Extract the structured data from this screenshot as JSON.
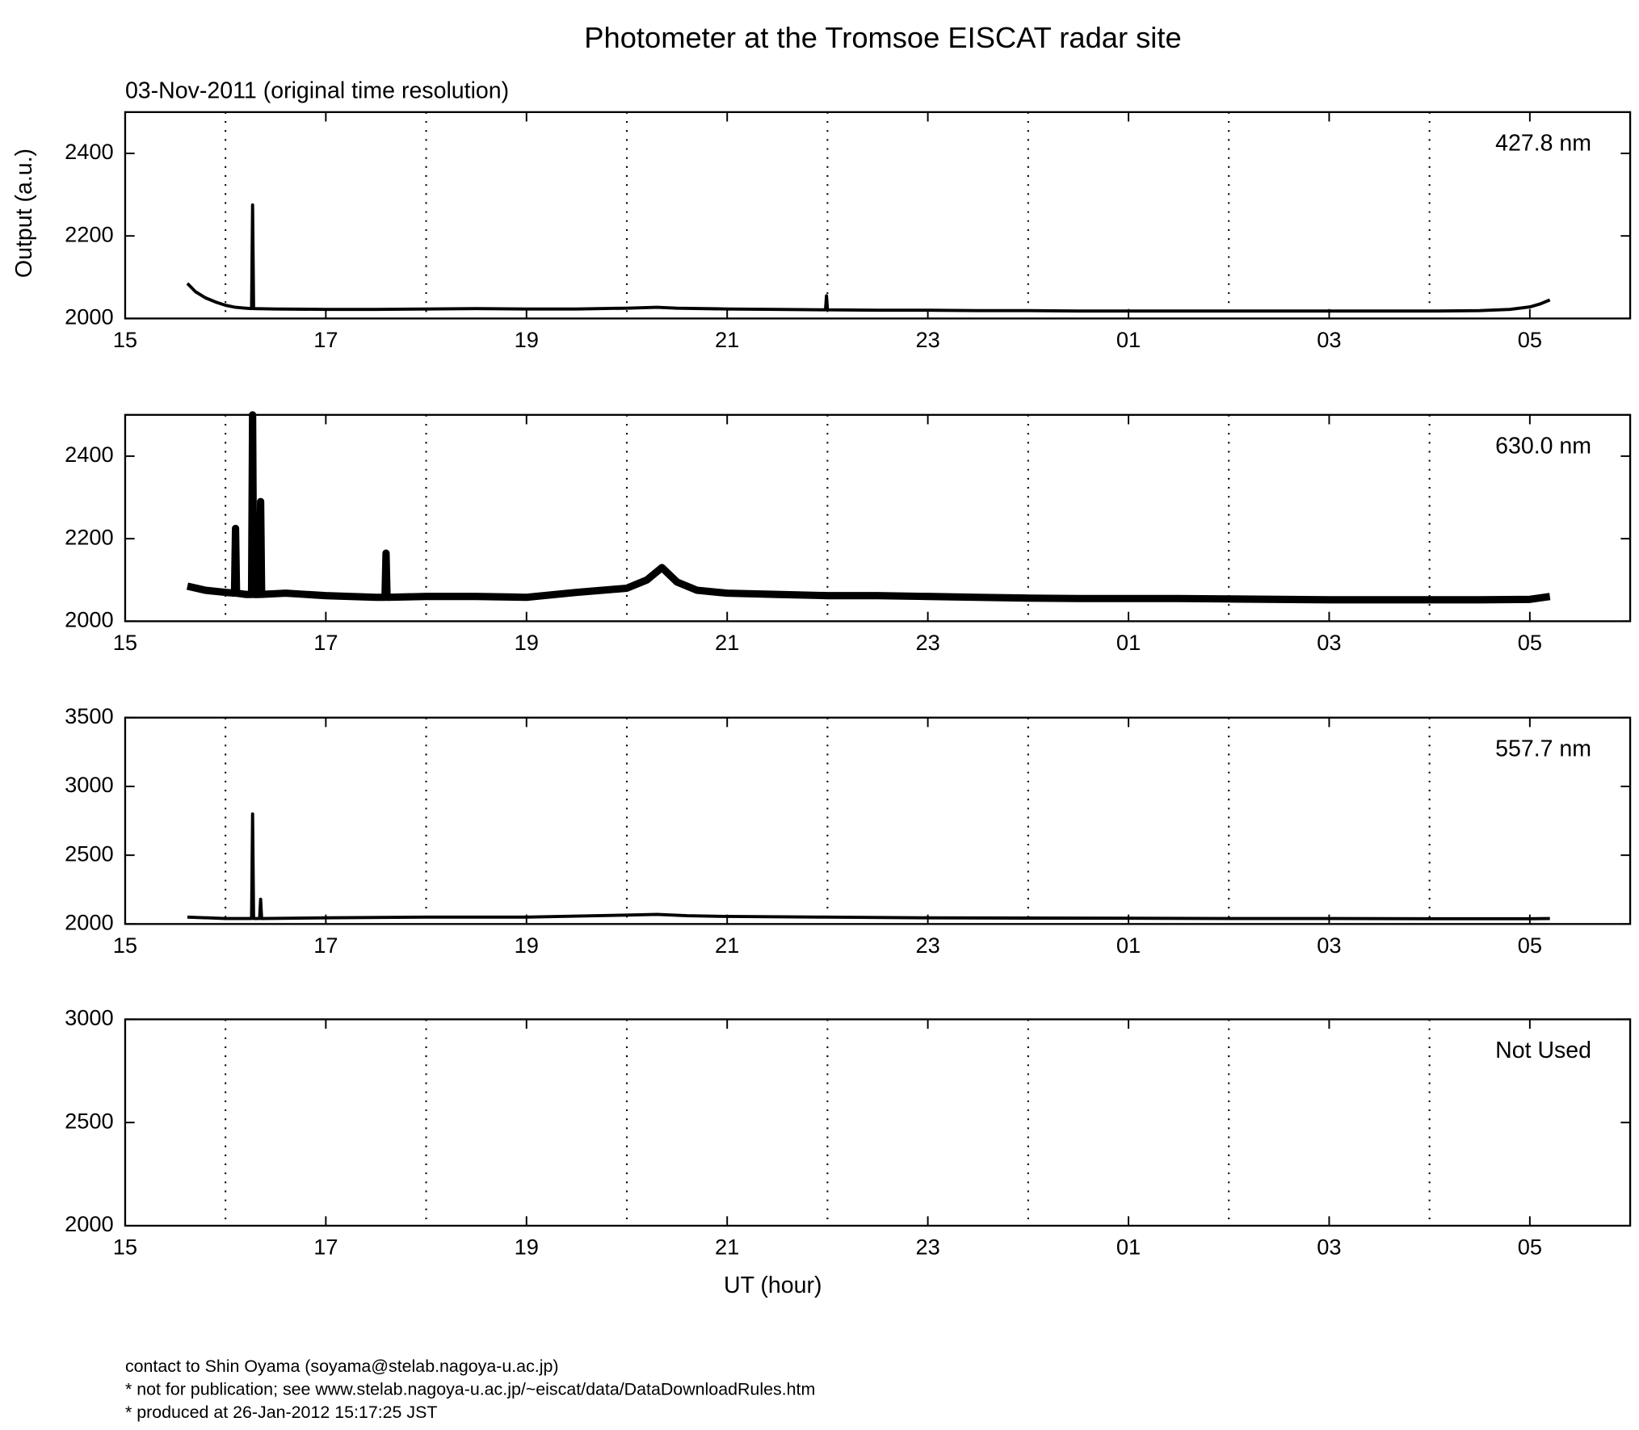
{
  "title": "Photometer at the Tromsoe EISCAT radar site",
  "footer": [
    "contact to Shin Oyama (soyama@stelab.nagoya-u.ac.jp)",
    "* not for publication; see www.stelab.nagoya-u.ac.jp/~eiscat/data/DataDownloadRules.htm",
    "* produced at 26-Jan-2012 15:17:25 JST"
  ],
  "chart_data": [
    {
      "type": "line",
      "subtitle": "03-Nov-2011 (original time resolution)",
      "ylabel": "Output (a.u.)",
      "annotation": "427.8 nm",
      "color": "#000000",
      "x": [
        15.62,
        15.7,
        15.8,
        15.9,
        16.0,
        16.1,
        16.2,
        16.26,
        16.27,
        16.28,
        16.5,
        17,
        17.5,
        18,
        18.5,
        19,
        19.5,
        20,
        20.3,
        20.5,
        21,
        21.5,
        21.98,
        21.99,
        22.0,
        22.5,
        23,
        23.5,
        24,
        24.5,
        25,
        25.5,
        26,
        26.5,
        27,
        27.5,
        28,
        28.5,
        28.8,
        29.0,
        29.1,
        29.2
      ],
      "values": [
        2085,
        2065,
        2050,
        2040,
        2032,
        2027,
        2025,
        2024,
        2275,
        2024,
        2023,
        2022,
        2022,
        2023,
        2024,
        2023,
        2023,
        2025,
        2027,
        2025,
        2023,
        2022,
        2021,
        2055,
        2021,
        2020,
        2020,
        2019,
        2019,
        2018,
        2018,
        2018,
        2018,
        2018,
        2018,
        2018,
        2018,
        2019,
        2022,
        2028,
        2035,
        2045
      ],
      "xlim": [
        15,
        30
      ],
      "xticks": [
        15,
        17,
        19,
        21,
        23,
        {
          "value": 25,
          "label": "01"
        },
        {
          "value": 27,
          "label": "03"
        },
        {
          "value": 29,
          "label": "05"
        }
      ],
      "xgrid": [
        16,
        18,
        20,
        22,
        24,
        26,
        28
      ],
      "ylim": [
        2000,
        2500
      ],
      "yticks": [
        2000,
        2200,
        2400
      ]
    },
    {
      "type": "line",
      "annotation": "630.0 nm",
      "color": "#000000",
      "x": [
        15.62,
        15.8,
        16.0,
        16.09,
        16.1,
        16.11,
        16.2,
        16.26,
        16.27,
        16.28,
        16.34,
        16.35,
        16.36,
        16.6,
        17,
        17.5,
        17.59,
        17.6,
        17.61,
        18,
        18.5,
        19,
        19.5,
        20,
        20.2,
        20.35,
        20.5,
        20.7,
        21,
        21.5,
        22,
        22.5,
        23,
        23.5,
        24,
        24.5,
        25,
        25.5,
        26,
        26.5,
        27,
        27.5,
        28,
        28.5,
        29,
        29.2
      ],
      "values": [
        2085,
        2075,
        2070,
        2068,
        2225,
        2068,
        2065,
        2065,
        2500,
        2065,
        2065,
        2290,
        2065,
        2068,
        2062,
        2058,
        2058,
        2165,
        2058,
        2060,
        2060,
        2058,
        2070,
        2080,
        2100,
        2130,
        2095,
        2075,
        2068,
        2065,
        2062,
        2062,
        2060,
        2058,
        2056,
        2055,
        2055,
        2055,
        2054,
        2053,
        2052,
        2052,
        2052,
        2052,
        2053,
        2060
      ],
      "xlim": [
        15,
        30
      ],
      "xticks": [
        15,
        17,
        19,
        21,
        23,
        {
          "value": 25,
          "label": "01"
        },
        {
          "value": 27,
          "label": "03"
        },
        {
          "value": 29,
          "label": "05"
        }
      ],
      "xgrid": [
        16,
        18,
        20,
        22,
        24,
        26,
        28
      ],
      "ylim": [
        2000,
        2500
      ],
      "yticks": [
        2000,
        2200,
        2400
      ]
    },
    {
      "type": "line",
      "annotation": "557.7 nm",
      "color": "#000000",
      "x": [
        15.62,
        16.0,
        16.26,
        16.27,
        16.28,
        16.34,
        16.35,
        16.36,
        17,
        18,
        19,
        20,
        20.3,
        20.6,
        21,
        22,
        23,
        24,
        25,
        26,
        27,
        28,
        29,
        29.2
      ],
      "values": [
        2050,
        2040,
        2040,
        2800,
        2040,
        2040,
        2180,
        2040,
        2045,
        2050,
        2050,
        2065,
        2070,
        2060,
        2055,
        2050,
        2045,
        2043,
        2042,
        2040,
        2040,
        2038,
        2038,
        2040
      ],
      "xlim": [
        15,
        30
      ],
      "xticks": [
        15,
        17,
        19,
        21,
        23,
        {
          "value": 25,
          "label": "01"
        },
        {
          "value": 27,
          "label": "03"
        },
        {
          "value": 29,
          "label": "05"
        }
      ],
      "xgrid": [
        16,
        18,
        20,
        22,
        24,
        26,
        28
      ],
      "ylim": [
        2000,
        3500
      ],
      "yticks": [
        2000,
        2500,
        3000,
        3500
      ]
    },
    {
      "type": "line",
      "annotation": "Not Used",
      "xlabel": "UT (hour)",
      "xlim": [
        15,
        30
      ],
      "xticks": [
        15,
        17,
        19,
        21,
        23,
        {
          "value": 25,
          "label": "01"
        },
        {
          "value": 27,
          "label": "03"
        },
        {
          "value": 29,
          "label": "05"
        }
      ],
      "xgrid": [
        16,
        18,
        20,
        22,
        24,
        26,
        28
      ],
      "ylim": [
        2000,
        3000
      ],
      "yticks": [
        2000,
        2500,
        3000
      ]
    }
  ]
}
